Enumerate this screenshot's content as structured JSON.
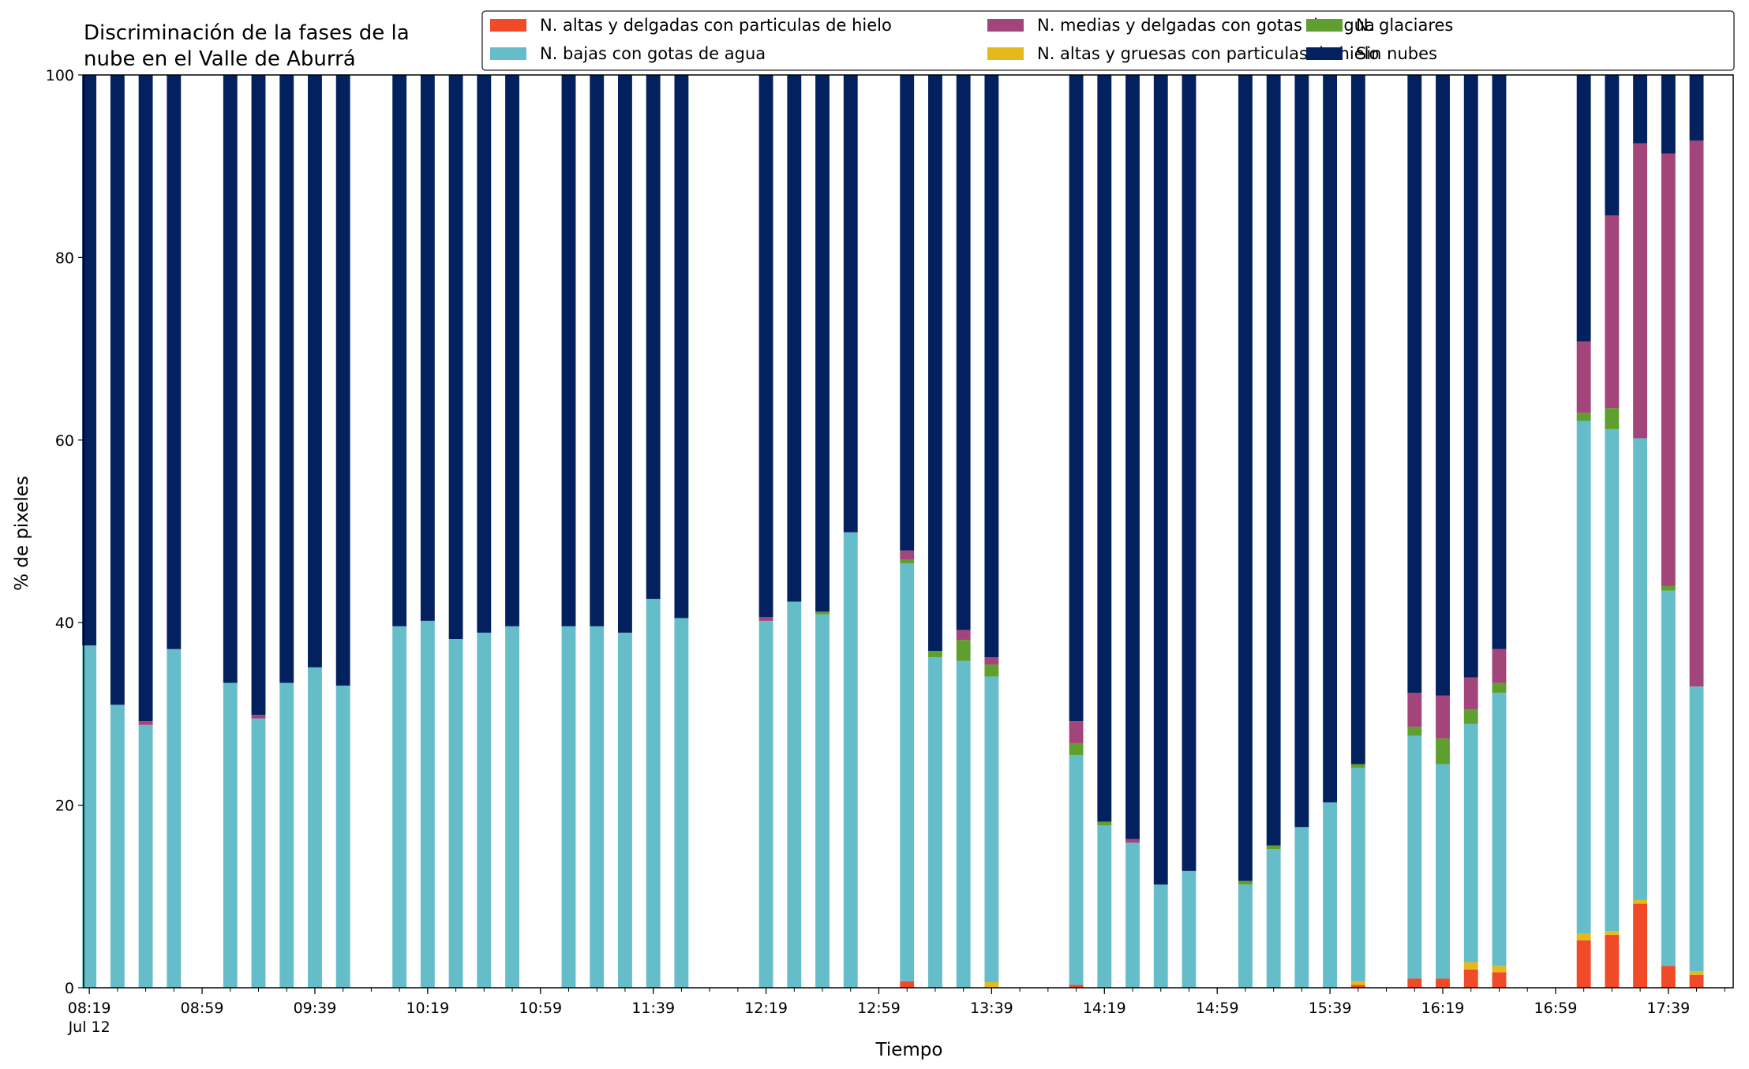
{
  "chart_data": {
    "type": "bar",
    "stacked": true,
    "title_lines": [
      "Discriminación de la fases de la",
      "nube en el Valle de Aburrá"
    ],
    "xlabel": "Tiempo",
    "ylabel": "% de pixeles",
    "ylim": [
      0,
      100
    ],
    "yticks": [
      0,
      20,
      40,
      60,
      80,
      100
    ],
    "x_unit": "minutes",
    "x_start": "08:19",
    "xlim_min": [
      497,
      1082
    ],
    "date_label": "Jul 12",
    "xticks_labeled": [
      {
        "min": 499,
        "label": "08:19"
      },
      {
        "min": 539,
        "label": "08:59"
      },
      {
        "min": 579,
        "label": "09:39"
      },
      {
        "min": 619,
        "label": "10:19"
      },
      {
        "min": 659,
        "label": "10:59"
      },
      {
        "min": 699,
        "label": "11:39"
      },
      {
        "min": 739,
        "label": "12:19"
      },
      {
        "min": 779,
        "label": "12:59"
      },
      {
        "min": 819,
        "label": "13:39"
      },
      {
        "min": 859,
        "label": "14:19"
      },
      {
        "min": 899,
        "label": "14:59"
      },
      {
        "min": 939,
        "label": "15:39"
      },
      {
        "min": 979,
        "label": "16:19"
      },
      {
        "min": 1019,
        "label": "16:59"
      },
      {
        "min": 1059,
        "label": "17:39"
      }
    ],
    "minor_tick_step_min": 10,
    "legend": {
      "placement": "top-right",
      "columns": 3
    },
    "series": [
      {
        "name": "N. altas y delgadas con particulas de hielo",
        "color": "#f04a28"
      },
      {
        "name": "N. altas y gruesas con particulas de hielo",
        "color": "#e6b91a"
      },
      {
        "name": "N. bajas con gotas de agua",
        "color": "#66bdca"
      },
      {
        "name": "N. glaciares",
        "color": "#5f9f2f"
      },
      {
        "name": "N. medias y delgadas con gotas de agua",
        "color": "#a3457a"
      },
      {
        "name": "Sin nubes",
        "color": "#03215f"
      }
    ],
    "legend_order": [
      0,
      2,
      4,
      1,
      3,
      5
    ],
    "bar_width_min": 5,
    "times": [
      "08:19",
      "08:29",
      "08:39",
      "08:49",
      "09:09",
      "09:19",
      "09:29",
      "09:39",
      "09:49",
      "10:09",
      "10:19",
      "10:29",
      "10:39",
      "10:49",
      "11:09",
      "11:19",
      "11:29",
      "11:39",
      "11:49",
      "12:19",
      "12:29",
      "12:39",
      "12:49",
      "13:09",
      "13:19",
      "13:29",
      "13:39",
      "14:09",
      "14:19",
      "14:29",
      "14:39",
      "14:49",
      "15:09",
      "15:19",
      "15:29",
      "15:39",
      "15:49",
      "16:09",
      "16:19",
      "16:29",
      "16:39",
      "17:09",
      "17:19",
      "17:29",
      "17:39",
      "17:49"
    ],
    "values": [
      [
        0,
        0,
        37.5,
        0,
        0,
        62.5
      ],
      [
        0,
        0,
        31,
        0,
        0,
        69
      ],
      [
        0,
        0,
        28.8,
        0,
        0.4,
        70.8
      ],
      [
        0,
        0,
        37.1,
        0,
        0,
        62.9
      ],
      [
        0,
        0,
        33.4,
        0,
        0,
        66.6
      ],
      [
        0,
        0,
        29.5,
        0,
        0.4,
        70.1
      ],
      [
        0,
        0,
        33.4,
        0,
        0,
        66.6
      ],
      [
        0,
        0,
        35.1,
        0,
        0,
        64.9
      ],
      [
        0,
        0,
        33.1,
        0,
        0,
        66.9
      ],
      [
        0,
        0,
        39.6,
        0,
        0,
        60.4
      ],
      [
        0,
        0,
        40.2,
        0,
        0,
        59.8
      ],
      [
        0,
        0,
        38.2,
        0,
        0,
        61.8
      ],
      [
        0,
        0,
        38.9,
        0,
        0,
        61.1
      ],
      [
        0,
        0,
        39.6,
        0,
        0,
        60.4
      ],
      [
        0,
        0,
        39.6,
        0,
        0,
        60.4
      ],
      [
        0,
        0,
        39.6,
        0,
        0,
        60.4
      ],
      [
        0,
        0,
        38.9,
        0,
        0,
        61.1
      ],
      [
        0,
        0,
        42.6,
        0,
        0,
        57.4
      ],
      [
        0,
        0,
        40.5,
        0,
        0,
        59.5
      ],
      [
        0,
        0,
        40.2,
        0,
        0.4,
        59.4
      ],
      [
        0,
        0,
        42.3,
        0,
        0,
        57.7
      ],
      [
        0,
        0,
        40.9,
        0.3,
        0,
        58.8
      ],
      [
        0,
        0,
        49.9,
        0,
        0,
        50.1
      ],
      [
        0.7,
        0,
        45.8,
        0.4,
        1,
        52.1
      ],
      [
        0,
        0,
        36.2,
        0.7,
        0,
        63.1
      ],
      [
        0,
        0,
        35.8,
        2.3,
        1.1,
        60.8
      ],
      [
        0,
        0.6,
        33.5,
        1.3,
        0.8,
        63.8
      ],
      [
        0.3,
        0,
        25.2,
        1.3,
        2.4,
        70.8
      ],
      [
        0,
        0,
        17.8,
        0.4,
        0,
        81.8
      ],
      [
        0,
        0,
        15.9,
        0,
        0.4,
        83.7
      ],
      [
        0,
        0,
        11.3,
        0,
        0,
        88.7
      ],
      [
        0,
        0,
        12.8,
        0,
        0,
        87.2
      ],
      [
        0,
        0,
        11.3,
        0.4,
        0,
        88.3
      ],
      [
        0,
        0,
        15.2,
        0.4,
        0,
        84.4
      ],
      [
        0,
        0,
        17.6,
        0,
        0,
        82.4
      ],
      [
        0,
        0,
        20.3,
        0,
        0,
        79.7
      ],
      [
        0.3,
        0.4,
        23.4,
        0.4,
        0,
        75.5
      ],
      [
        1,
        0,
        26.6,
        1,
        3.7,
        67.7
      ],
      [
        1,
        0,
        23.5,
        2.8,
        4.7,
        68
      ],
      [
        2,
        0.8,
        26.1,
        1.6,
        3.5,
        66
      ],
      [
        1.7,
        0.7,
        29.9,
        1.1,
        3.7,
        62.9
      ],
      [
        5.2,
        0.7,
        56.2,
        0.9,
        7.8,
        29.2
      ],
      [
        5.8,
        0.4,
        55,
        2.3,
        21.1,
        15.4
      ],
      [
        9.2,
        0.4,
        50.6,
        0,
        32.3,
        7.5
      ],
      [
        2.4,
        0,
        41.1,
        0.5,
        47.4,
        8.6
      ],
      [
        1.4,
        0.4,
        31.2,
        0,
        59.8,
        7.2
      ]
    ]
  }
}
